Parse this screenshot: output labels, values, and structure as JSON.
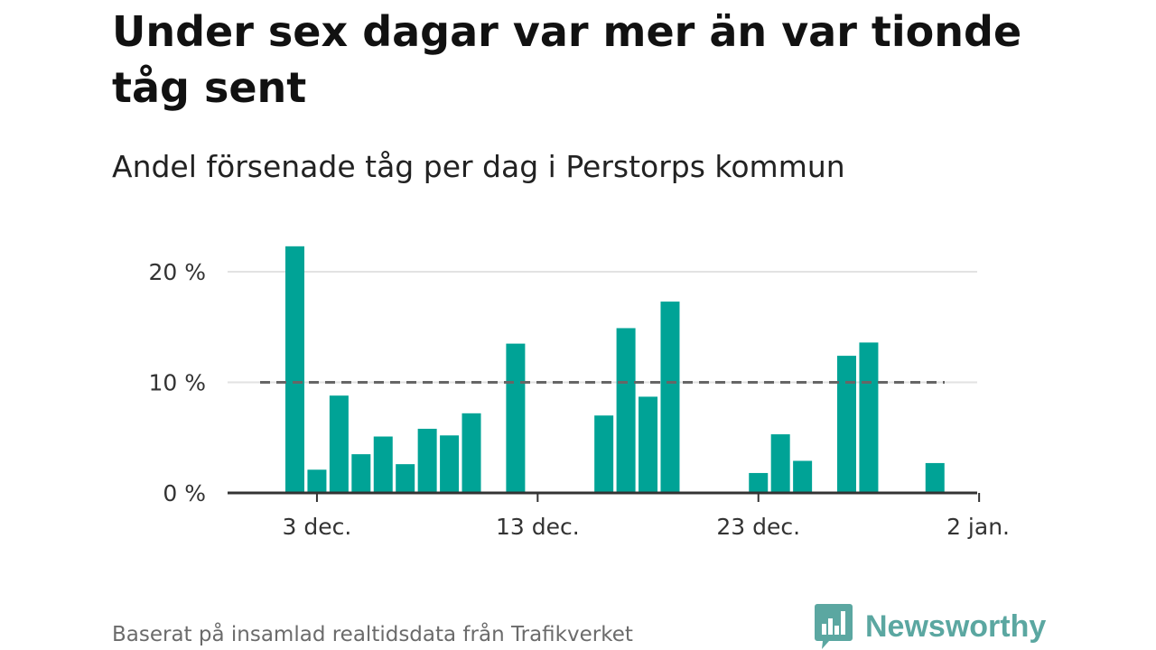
{
  "title": "Under sex dagar var mer än var tionde tåg sent",
  "subtitle": "Andel försenade tåg per dag i Perstorps kommun",
  "footer": "Baserat på insamlad realtidsdata från Trafikverket",
  "brand": {
    "name": "Newsworthy",
    "logo_icon": "bar-chart-badge-icon"
  },
  "colors": {
    "bar": "#00a396",
    "reference_line": "#666666",
    "grid": "#e2e2e2",
    "axis": "#333333",
    "brand": "#5ba7a1"
  },
  "chart_data": {
    "type": "bar",
    "x": [
      "2 dec.",
      "3 dec.",
      "4 dec.",
      "5 dec.",
      "6 dec.",
      "7 dec.",
      "8 dec.",
      "9 dec.",
      "10 dec.",
      "11 dec.",
      "12 dec.",
      "13 dec.",
      "14 dec.",
      "15 dec.",
      "16 dec.",
      "17 dec.",
      "18 dec.",
      "19 dec.",
      "20 dec.",
      "21 dec.",
      "22 dec.",
      "23 dec.",
      "24 dec.",
      "25 dec.",
      "26 dec.",
      "27 dec.",
      "28 dec.",
      "29 dec.",
      "30 dec.",
      "31 dec.",
      "1 jan."
    ],
    "values": [
      22.3,
      2.1,
      8.8,
      3.5,
      5.1,
      2.6,
      5.8,
      5.2,
      7.2,
      null,
      13.5,
      null,
      null,
      null,
      7.0,
      14.9,
      8.7,
      17.3,
      null,
      null,
      null,
      1.8,
      5.3,
      2.9,
      null,
      12.4,
      13.6,
      null,
      null,
      2.7,
      null
    ],
    "x_ticks": [
      "3 dec.",
      "13 dec.",
      "23 dec.",
      "2 jan."
    ],
    "y_ticks": [
      {
        "value": 0,
        "label": "0 %"
      },
      {
        "value": 10,
        "label": "10 %"
      },
      {
        "value": 20,
        "label": "20 %"
      }
    ],
    "ylim": [
      0,
      22.3
    ],
    "unit": "%",
    "reference_line": {
      "value": 10,
      "style": "dashed"
    },
    "grid": true,
    "legend": "none"
  }
}
